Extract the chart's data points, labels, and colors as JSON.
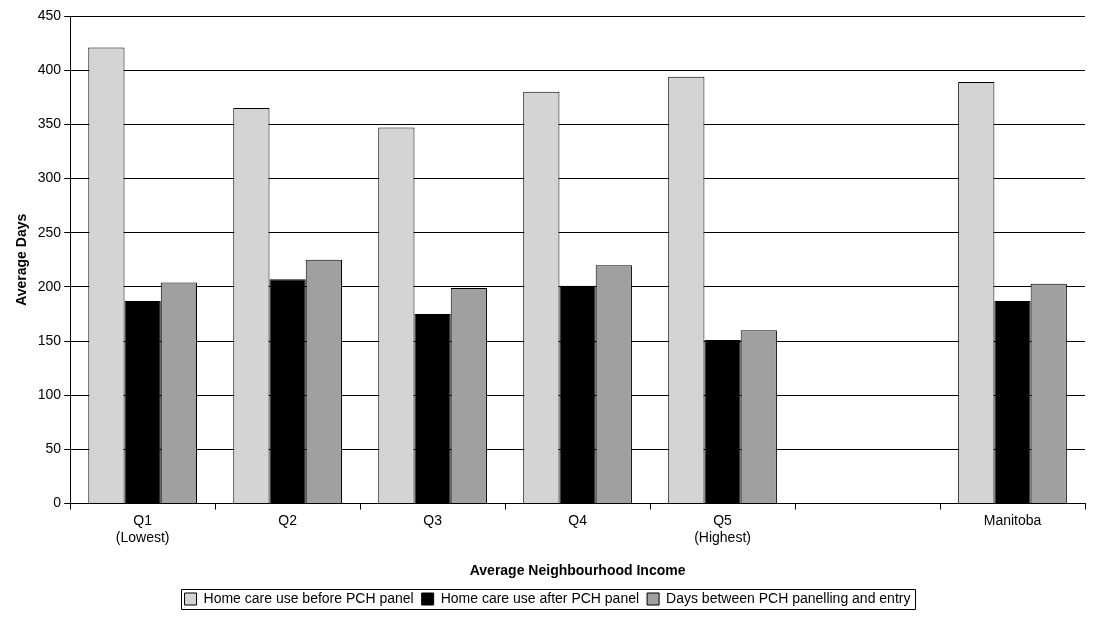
{
  "chart_data": {
    "type": "bar",
    "xlabel": "Average Neighbourhood Income",
    "ylabel": "Average Days",
    "categories": [
      "Q1 (Lowest)",
      "Q2",
      "Q3",
      "Q4",
      "Q5 (Highest)",
      null,
      "Manitoba"
    ],
    "series": [
      {
        "name": "Home care use before PCH panel",
        "color": "#d4d4d4",
        "values": [
          421,
          365,
          347,
          380,
          394,
          null,
          389
        ]
      },
      {
        "name": "Home care use after PCH panel",
        "color": "#000000",
        "values": [
          187,
          207,
          175,
          201,
          151,
          null,
          187
        ]
      },
      {
        "name": "Days between PCH panelling and entry",
        "color": "#a0a0a0",
        "values": [
          204,
          225,
          199,
          220,
          160,
          null,
          203
        ]
      }
    ],
    "ylim": [
      0,
      450
    ],
    "yticks": [
      0,
      50,
      100,
      150,
      200,
      250,
      300,
      350,
      400,
      450
    ],
    "grid": "y",
    "legend": "bottom"
  }
}
